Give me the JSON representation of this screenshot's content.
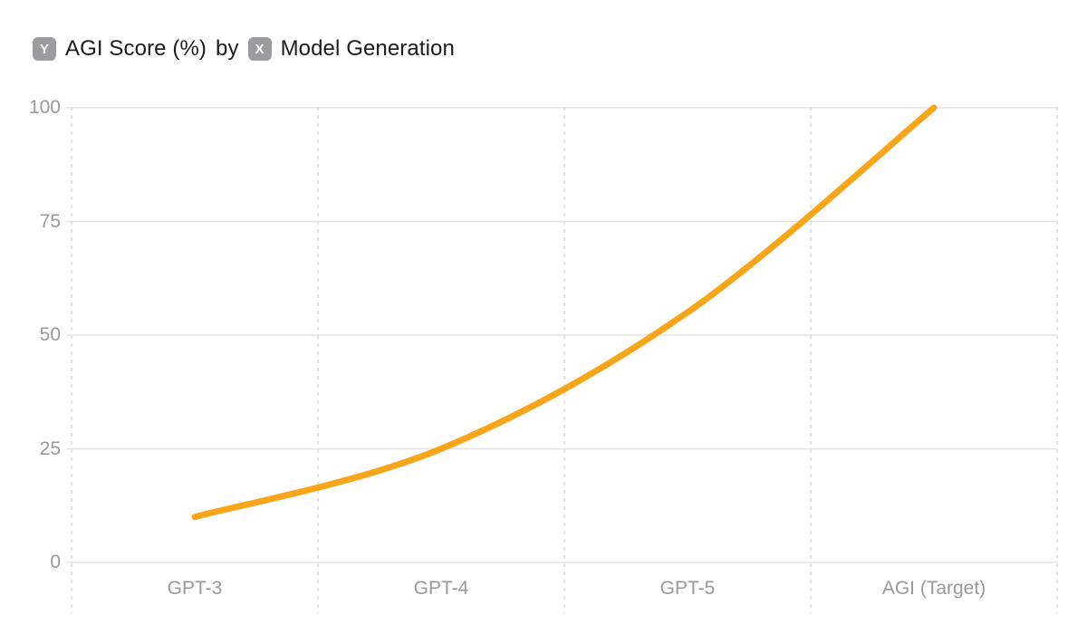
{
  "title": {
    "y_badge_letter": "Y",
    "y_axis_label": "AGI Score (%)",
    "connector": "by",
    "x_badge_letter": "X",
    "x_axis_label": "Model Generation"
  },
  "chart_data": {
    "type": "line",
    "categories": [
      "GPT-3",
      "GPT-4",
      "GPT-5",
      "AGI (Target)"
    ],
    "values": [
      10,
      25,
      55,
      100
    ],
    "series_name": "AGI Score (%)",
    "title": "AGI Score (%) by Model Generation",
    "xlabel": "Model Generation",
    "ylabel": "AGI Score (%)",
    "ylim": [
      0,
      100
    ],
    "yticks": [
      0,
      25,
      50,
      75,
      100
    ],
    "grid": {
      "horizontal": "solid",
      "vertical": "dashed"
    },
    "legend": "none",
    "smooth": true
  },
  "colors": {
    "line": "#F7A61A",
    "grid_solid": "#E4E4E7",
    "grid_dashed": "#D9D9DE",
    "axis_label": "#98989D",
    "title_text": "#1C1C1E",
    "badge_bg": "#9B9BA0",
    "badge_text": "#FFFFFF",
    "background": "#FFFFFF"
  }
}
